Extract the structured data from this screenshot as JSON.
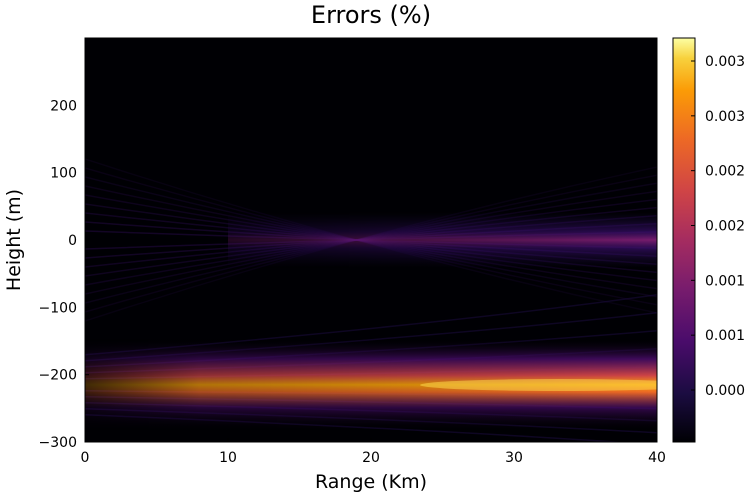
{
  "chart_data": {
    "type": "heatmap",
    "title": "Errors (%)",
    "xlabel": "Range (Km)",
    "ylabel": "Height (m)",
    "xlim": [
      0,
      40
    ],
    "ylim": [
      -300,
      300
    ],
    "x_ticks": [
      "0",
      "10",
      "20",
      "30",
      "40"
    ],
    "y_ticks": [
      "200",
      "100",
      "0",
      "−100",
      "−200",
      "−300"
    ],
    "colorbar": {
      "colormap": "inferno",
      "tick_labels": [
        "0.003",
        "0.003",
        "0.002",
        "0.002",
        "0.001",
        "0.001",
        "0.000"
      ]
    },
    "features": [
      {
        "type": "band",
        "center_height": -215,
        "x_start": 0,
        "x_end": 40,
        "peak_fraction": 0.95
      },
      {
        "type": "band",
        "center_height": 0,
        "x_start": 10,
        "x_end": 40,
        "peak_fraction": 0.35
      }
    ],
    "grid": false
  }
}
